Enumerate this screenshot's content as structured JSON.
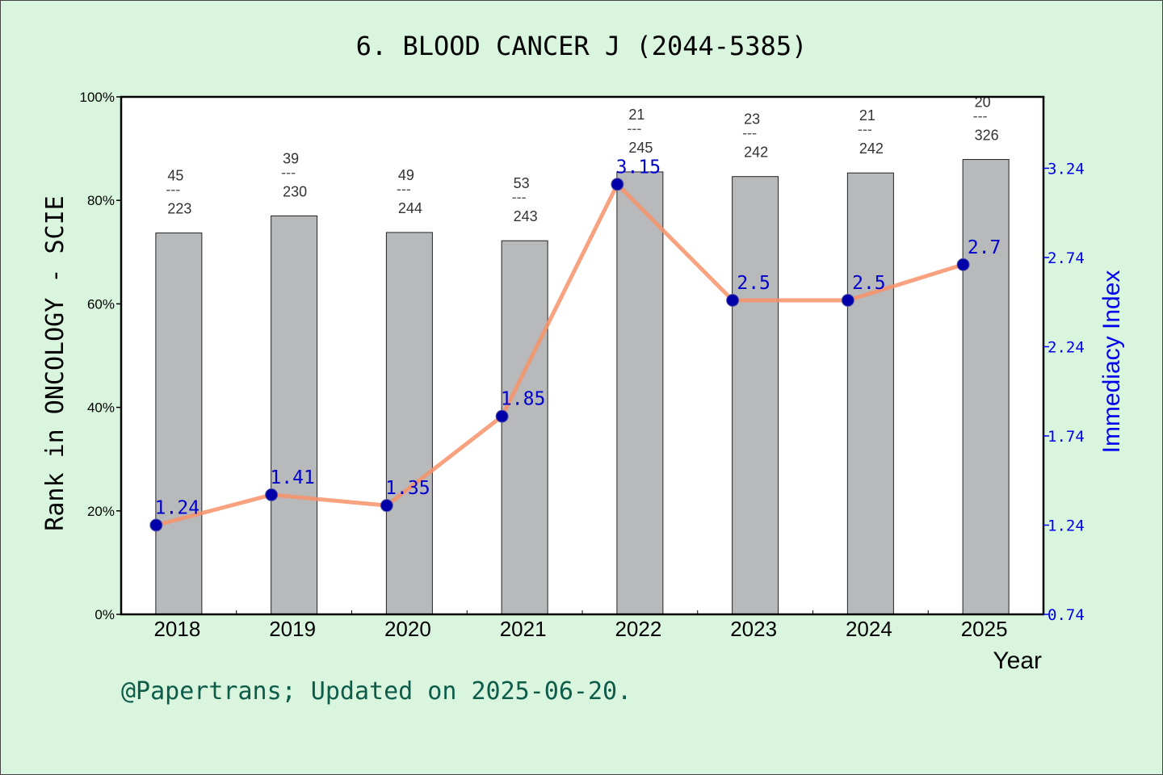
{
  "title": "6. BLOOD CANCER J (2044-5385)",
  "footer": "@Papertrans; Updated on 2025-06-20.",
  "colors": {
    "background": "#d9f5de",
    "bar": "#b8b9bb",
    "line": "#f7926a",
    "marker": "#0000aa",
    "right_axis": "#0000ee"
  },
  "chart_data": {
    "type": "bar",
    "title": "6. BLOOD CANCER J (2044-5385)",
    "xlabel": "Year",
    "ylabel": "Rank in ONCOLOGY - SCIE",
    "y2label": "Immediacy Index",
    "categories": [
      "2018",
      "2019",
      "2020",
      "2021",
      "2022",
      "2023",
      "2024",
      "2025"
    ],
    "y_ticks": [
      "0%",
      "20%",
      "40%",
      "60%",
      "80%",
      "100%"
    ],
    "ylim": [
      0,
      100
    ],
    "y2_ticks": [
      "0.74",
      "1.24",
      "1.74",
      "2.24",
      "2.74",
      "3.24"
    ],
    "y2lim": [
      0.74,
      3.64
    ],
    "series": [
      {
        "kind": "bar",
        "values": [
          73.7,
          77.0,
          73.8,
          72.2,
          85.5,
          84.6,
          85.3,
          87.9
        ],
        "rank_labels": [
          {
            "rank": "45",
            "sep": "---",
            "total": "223"
          },
          {
            "rank": "39",
            "sep": "---",
            "total": "230"
          },
          {
            "rank": "49",
            "sep": "---",
            "total": "244"
          },
          {
            "rank": "53",
            "sep": "---",
            "total": "243"
          },
          {
            "rank": "21",
            "sep": "---",
            "total": "245"
          },
          {
            "rank": "23",
            "sep": "---",
            "total": "242"
          },
          {
            "rank": "21",
            "sep": "---",
            "total": "242"
          },
          {
            "rank": "20",
            "sep": "---",
            "total": "326"
          }
        ]
      },
      {
        "kind": "line",
        "axis": "right",
        "values": [
          1.24,
          1.41,
          1.35,
          1.85,
          3.15,
          2.5,
          2.5,
          2.7
        ],
        "labels": [
          "1.24",
          "1.41",
          "1.35",
          "1.85",
          "3.15",
          "2.5",
          "2.5",
          "2.7"
        ]
      }
    ],
    "grid": false
  }
}
